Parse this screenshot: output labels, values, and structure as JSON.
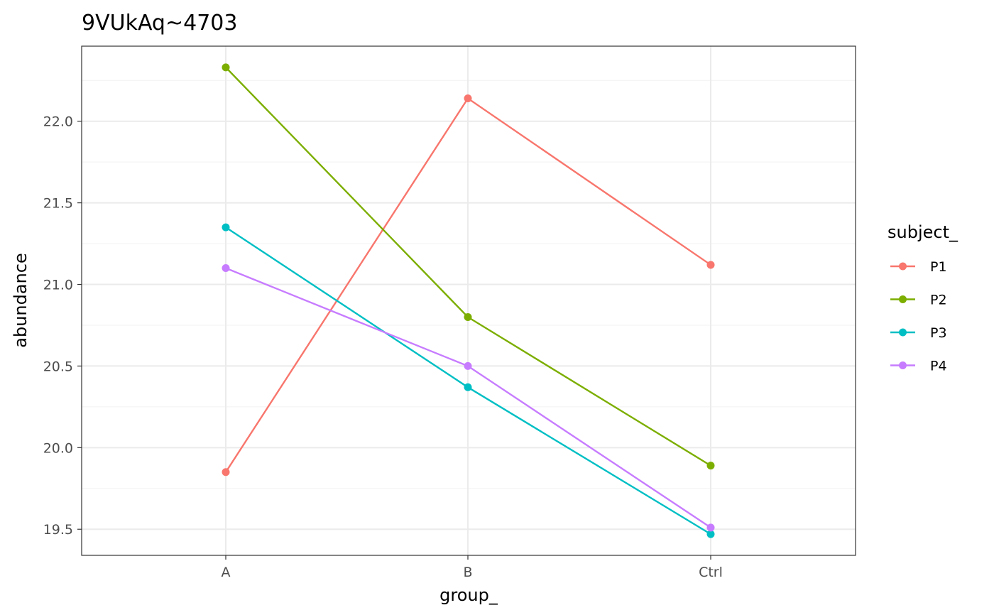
{
  "chart_data": {
    "type": "line",
    "title": "9VUkAq~4703",
    "xlabel": "group_",
    "ylabel": "abundance",
    "categories": [
      "A",
      "B",
      "Ctrl"
    ],
    "ylim": [
      19.34,
      22.46
    ],
    "yticks": [
      19.5,
      20.0,
      20.5,
      21.0,
      21.5,
      22.0
    ],
    "ytick_labels": [
      "19.5",
      "20.0",
      "20.5",
      "21.0",
      "21.5",
      "22.0"
    ],
    "grid": true,
    "legend": {
      "title": "subject_",
      "position": "right"
    },
    "series": [
      {
        "name": "P1",
        "color": "#F8766D",
        "values": [
          19.85,
          22.14,
          21.12
        ]
      },
      {
        "name": "P2",
        "color": "#7CAE00",
        "values": [
          22.33,
          20.8,
          19.89
        ]
      },
      {
        "name": "P3",
        "color": "#00BFC4",
        "values": [
          21.35,
          20.37,
          19.47
        ]
      },
      {
        "name": "P4",
        "color": "#C77CFF",
        "values": [
          21.1,
          20.5,
          19.51
        ]
      }
    ]
  }
}
